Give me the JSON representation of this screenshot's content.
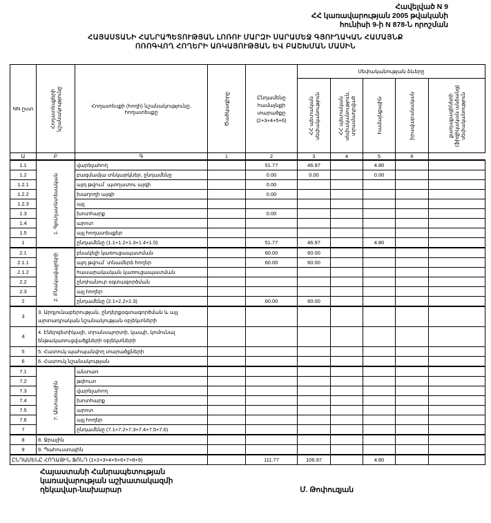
{
  "annex": {
    "line1": "Հավելված N 9",
    "line2": "ՀՀ կառավարության 2005 թվականի",
    "line3": "հունիսի 9-ի N 878-Ն որոշման"
  },
  "title": {
    "line1": "ՀԱՅԱՍՏԱՆԻ ՀԱՆՐԱՊԵՏՈՒԹՅԱՆ ԼՈՌՈՒ ՄԱՐԶԻ ՍԱՐԱՄԵՋ ԳՅՈՒՂԱԿԱՆ ՀԱՄԱՅՆՔ",
    "line2": "ՈՌՈԳՎՈՂ ՀՈՂԵՐԻ ԱՌԿԱՅՈՒԹՅԱՆ ԵՎ ԲԱՇԽՄԱՆ ՄԱՍԻՆ"
  },
  "header": {
    "nn": "NN ըստ",
    "category": "Հողատեսքերի նշանակությունը",
    "landtype": "Հողատեսքի (հողի) նշանակությունը, հողատեսքը",
    "code": "Ծածկագիրը",
    "total": "Ընդամենը համայնքի տարածքը (2+3+4+5+6)",
    "ownership": "Սեփականության ձևերը",
    "cols": [
      "ՀՀ պետական սեփականություն",
      "ՀՀ պետական սեփականություն, տրամադրված",
      "համայնքային",
      "իրավաբանական",
      "քաղաքացիների (ֆիզիկական անձանց) սեփականություն"
    ],
    "numbers": [
      "Ա",
      "Բ",
      "Գ",
      "1",
      "2",
      "3",
      "4",
      "5",
      "6"
    ]
  },
  "sections": [
    {
      "group": "1. Գյուղատնտեսական",
      "rows": [
        {
          "num": "1.1",
          "label": "վարելահող",
          "values": [
            "",
            "51.77",
            "46.97",
            "",
            "4.80",
            "",
            ""
          ]
        },
        {
          "num": "1.2",
          "label": "բազմամյա տնկարկներ, ընդամենը",
          "values": [
            "",
            "0.00",
            "0.00",
            "",
            "0.00",
            "",
            ""
          ]
        },
        {
          "num": "1.2.1",
          "label": "այդ թվում`     պտղատու այգի",
          "values": [
            "",
            "0.00",
            "",
            "",
            "",
            "",
            ""
          ]
        },
        {
          "num": "1.2.2",
          "label": "                 խաղողի այգի",
          "values": [
            "",
            "0.00",
            "",
            "",
            "",
            "",
            ""
          ]
        },
        {
          "num": "1.2.3",
          "label": "այլ",
          "values": [
            "",
            "",
            "",
            "",
            "",
            "",
            ""
          ]
        },
        {
          "num": "1.3",
          "label": "խոտհարք",
          "values": [
            "",
            "0.00",
            "",
            "",
            "",
            "",
            ""
          ]
        },
        {
          "num": "1.4",
          "label": "արոտ",
          "values": [
            "",
            "",
            "",
            "",
            "",
            "",
            ""
          ]
        },
        {
          "num": "1.5",
          "label": "այլ հողատեսքեր",
          "values": [
            "",
            "",
            "",
            "",
            "",
            "",
            ""
          ]
        },
        {
          "num": "1",
          "label": "ընդամենը (1.1+1.2+1.3+1.4+1.5)",
          "values": [
            "",
            "51.77",
            "46.97",
            "",
            "4.80",
            "",
            ""
          ]
        }
      ]
    },
    {
      "group": "2. Բնակավայրերի",
      "rows": [
        {
          "num": "2.1",
          "label": "բնակելի կառուցապատման",
          "values": [
            "",
            "60.00",
            "60.00",
            "",
            "",
            "",
            ""
          ]
        },
        {
          "num": "2.1.1",
          "label": "այդ թվում` տնամերձ հողեր",
          "values": [
            "",
            "60.00",
            "60.00",
            "",
            "",
            "",
            ""
          ]
        },
        {
          "num": "2.1.2",
          "label": "հասարակական կառուցապատման",
          "values": [
            "",
            "",
            "",
            "",
            "",
            "",
            ""
          ]
        },
        {
          "num": "2.2",
          "label": "ընդհանուր օգտագործման",
          "values": [
            "",
            "",
            "",
            "",
            "",
            "",
            ""
          ]
        },
        {
          "num": "2.3",
          "label": "այլ հողեր",
          "values": [
            "",
            "",
            "",
            "",
            "",
            "",
            ""
          ]
        },
        {
          "num": "2",
          "label": "ընդամենը (2.1+2.2+2.3)",
          "values": [
            "",
            "60.00",
            "60.00",
            "",
            "",
            "",
            ""
          ]
        }
      ]
    },
    {
      "group": null,
      "rows": [
        {
          "num": "3",
          "label": "3. Արդյունաբերության, ընդերքօգտագործման և այլ արտադրական նշանակության օբյեկտների",
          "values": [
            "",
            "",
            "",
            "",
            "",
            "",
            ""
          ],
          "tall": true
        },
        {
          "num": "4",
          "label": "4. Էներգետիկայի, տրանսպորտի, կապի, կոմունալ ենթակառուցվածքների օբյեկտների",
          "values": [
            "",
            "",
            "",
            "",
            "",
            "",
            ""
          ],
          "tall": true
        },
        {
          "num": "5",
          "label": "5. Հատուկ պահպանվող տարածքների",
          "values": [
            "",
            "",
            "",
            "",
            "",
            "",
            ""
          ]
        },
        {
          "num": "6",
          "label": "6. Հատուկ նշանակության",
          "values": [
            "",
            "",
            "",
            "",
            "",
            "",
            ""
          ]
        }
      ]
    },
    {
      "group": "7. Անտառային",
      "rows": [
        {
          "num": "7.1",
          "label": "անտառ",
          "values": [
            "",
            "",
            "",
            "",
            "",
            "",
            ""
          ]
        },
        {
          "num": "7.2",
          "label": "թփուտ",
          "values": [
            "",
            "",
            "",
            "",
            "",
            "",
            ""
          ]
        },
        {
          "num": "7.3",
          "label": "վարելահող",
          "values": [
            "",
            "",
            "",
            "",
            "",
            "",
            ""
          ]
        },
        {
          "num": "7.4",
          "label": "խոտհարք",
          "values": [
            "",
            "",
            "",
            "",
            "",
            "",
            ""
          ]
        },
        {
          "num": "7.5",
          "label": "արոտ",
          "values": [
            "",
            "",
            "",
            "",
            "",
            "",
            ""
          ]
        },
        {
          "num": "7.6",
          "label": "այլ հողեր",
          "values": [
            "",
            "",
            "",
            "",
            "",
            "",
            ""
          ]
        },
        {
          "num": "7",
          "label": "ընդամենը (7.1+7.2+7.3+7.4+7.5+7.6)",
          "values": [
            "",
            "",
            "",
            "",
            "",
            "",
            ""
          ]
        }
      ]
    },
    {
      "group": null,
      "rows": [
        {
          "num": "8",
          "label": "8. Ջրային",
          "values": [
            "",
            "",
            "",
            "",
            "",
            "",
            ""
          ]
        },
        {
          "num": "9",
          "label": "9. Պահուստային",
          "values": [
            "",
            "",
            "",
            "",
            "",
            "",
            ""
          ]
        }
      ]
    }
  ],
  "total_row": {
    "label": "ԸՆԴԱՄԵՆԸ ՀՈՂԱՅԻՆ ՖՈՆԴ (1+2+3+4+5+6+7+8+9)",
    "values": [
      "",
      "111.77",
      "106.97",
      "",
      "4.80",
      "",
      ""
    ]
  },
  "signature": {
    "line1": "Հայաստանի Հանրապետության",
    "line2": "կառավարության աշխատակազմի",
    "line3": "ղեկավար-նախարար",
    "name": "Մ. Թոփուզյան"
  }
}
